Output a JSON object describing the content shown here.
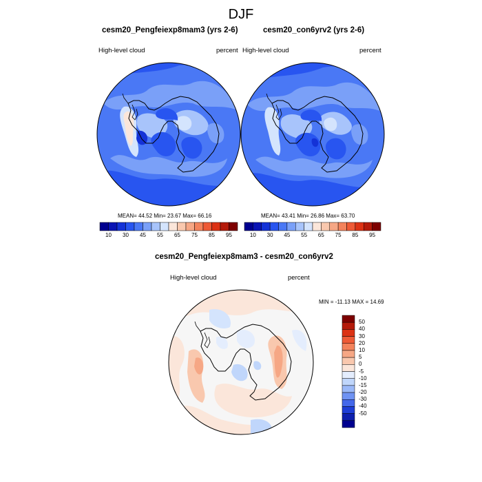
{
  "title": "DJF",
  "panels": [
    {
      "title": "cesm20_Pengfeiexp8mam3 (yrs 2-6)",
      "left_label": "High-level cloud",
      "right_label": "percent",
      "stats": "MEAN=  44.52  Min=  23.67  Max=  66.16"
    },
    {
      "title": "cesm20_con6yrv2 (yrs 2-6)",
      "left_label": "High-level cloud",
      "right_label": "percent",
      "stats": "MEAN=  43.41  Min=  26.86  Max=  63.70"
    }
  ],
  "abs_colorbar": {
    "labels": [
      "10",
      "30",
      "45",
      "55",
      "65",
      "75",
      "85",
      "95"
    ],
    "colors": [
      "#00008f",
      "#0a14b4",
      "#1432d7",
      "#2855f0",
      "#4a78f5",
      "#7aa0f8",
      "#a8c4fb",
      "#d4e4fd",
      "#fbe6da",
      "#f9c8ae",
      "#f6a785",
      "#f3835c",
      "#ee5a36",
      "#dc3214",
      "#b41a0a",
      "#7d0000"
    ]
  },
  "diff_panel": {
    "title": "cesm20_Pengfeiexp8mam3 - cesm20_con6yrv2",
    "left_label": "High-level cloud",
    "right_label": "percent",
    "stats": "MIN = -11.13 MAX =  14.69"
  },
  "diff_colorbar": {
    "labels": [
      "50",
      "40",
      "30",
      "20",
      "10",
      "5",
      "0",
      "-5",
      "-10",
      "-15",
      "-20",
      "-30",
      "-40",
      "-50"
    ],
    "colors": [
      "#7d0000",
      "#b41a0a",
      "#dc3214",
      "#ee5a36",
      "#f3835c",
      "#f6a785",
      "#f9c8ae",
      "#fbe6da",
      "#e4edfd",
      "#c0d6fb",
      "#9ab8f8",
      "#6f93f3",
      "#4468ea",
      "#1e3ed7",
      "#0d1fae",
      "#00008f"
    ]
  }
}
